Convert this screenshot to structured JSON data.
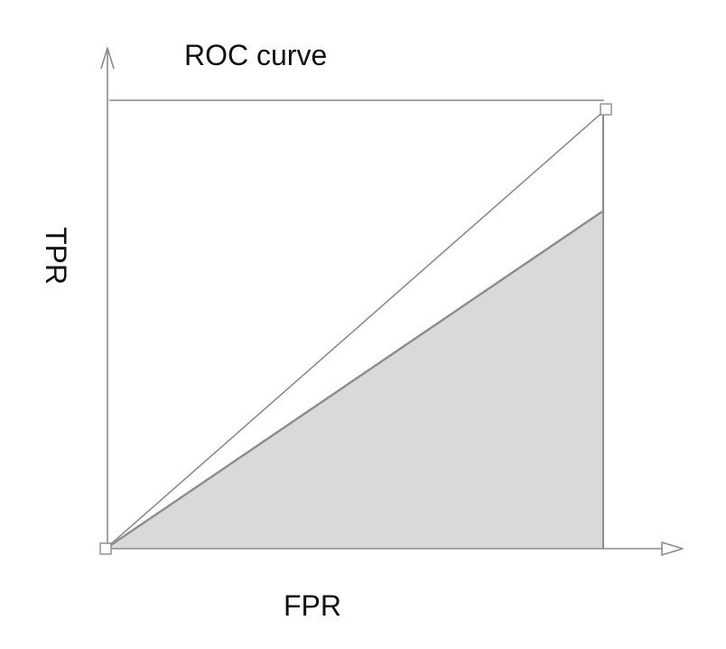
{
  "title": "ROC curve",
  "x_axis_label": "FPR",
  "y_axis_label": "TPR",
  "colors": {
    "line": "#8c8c8c",
    "fill": "#d9d9d9",
    "text": "#111111",
    "marker_fill": "#ffffff"
  }
}
